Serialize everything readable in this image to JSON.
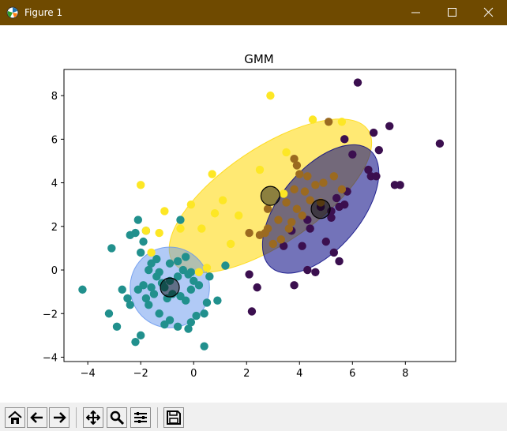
{
  "window": {
    "title": "Figure 1",
    "titlebar_color": "#6f4a00",
    "controls": [
      "minimize-icon",
      "maximize-icon",
      "close-icon"
    ]
  },
  "toolbar": {
    "buttons": [
      "home-icon",
      "back-arrow-icon",
      "forward-arrow-icon",
      "pan-icon",
      "zoom-icon",
      "configure-subplots-icon",
      "save-icon"
    ]
  },
  "chart_data": {
    "type": "scatter",
    "title": "GMM",
    "xlabel": "",
    "ylabel": "",
    "xlim": [
      -4.9,
      9.9
    ],
    "ylim": [
      -4.2,
      9.2
    ],
    "xticks": [
      -4,
      -2,
      0,
      2,
      4,
      6,
      8
    ],
    "yticks": [
      -4,
      -2,
      0,
      2,
      4,
      6,
      8
    ],
    "grid": false,
    "legend": "none",
    "series": [
      {
        "color": "#3b0f4f",
        "points": [
          [
            6.2,
            8.6
          ],
          [
            9.3,
            5.8
          ],
          [
            7.4,
            6.6
          ],
          [
            6.8,
            6.3
          ],
          [
            5.7,
            6.0
          ],
          [
            7.0,
            5.5
          ],
          [
            6.0,
            5.3
          ],
          [
            6.6,
            4.6
          ],
          [
            6.7,
            4.3
          ],
          [
            6.9,
            4.3
          ],
          [
            7.6,
            3.9
          ],
          [
            7.8,
            3.9
          ],
          [
            5.4,
            3.3
          ],
          [
            5.8,
            3.6
          ],
          [
            5.7,
            3.0
          ],
          [
            5.5,
            2.9
          ],
          [
            4.8,
            2.9
          ],
          [
            5.2,
            2.4
          ],
          [
            4.3,
            2.3
          ],
          [
            4.4,
            1.9
          ],
          [
            5.0,
            1.3
          ],
          [
            4.1,
            1.1
          ],
          [
            3.4,
            1.1
          ],
          [
            3.7,
            1.8
          ],
          [
            5.3,
            0.8
          ],
          [
            5.5,
            0.4
          ],
          [
            4.3,
            0.0
          ],
          [
            4.6,
            -0.1
          ],
          [
            3.8,
            -0.7
          ],
          [
            2.4,
            -0.8
          ],
          [
            2.1,
            -0.2
          ],
          [
            2.2,
            -1.9
          ],
          [
            5.2,
            2.7
          ]
        ],
        "symbol": "circle"
      },
      {
        "color": "#21908d",
        "points": [
          [
            -4.2,
            -0.9
          ],
          [
            -3.1,
            1.0
          ],
          [
            -3.2,
            -2.0
          ],
          [
            -2.9,
            -2.6
          ],
          [
            -2.7,
            -0.9
          ],
          [
            -2.5,
            -1.3
          ],
          [
            -2.4,
            -1.6
          ],
          [
            -2.4,
            1.6
          ],
          [
            -2.2,
            1.7
          ],
          [
            -2.1,
            2.3
          ],
          [
            -2.0,
            0.8
          ],
          [
            -1.8,
            1.8
          ],
          [
            -2.2,
            -3.3
          ],
          [
            -2.0,
            -3.0
          ],
          [
            -1.9,
            -0.7
          ],
          [
            -2.1,
            -0.9
          ],
          [
            -1.6,
            -0.8
          ],
          [
            -1.8,
            -1.3
          ],
          [
            -1.5,
            -1.1
          ],
          [
            -1.7,
            -1.6
          ],
          [
            -1.3,
            -2.0
          ],
          [
            -1.1,
            -2.5
          ],
          [
            -0.9,
            -2.3
          ],
          [
            -0.6,
            -2.6
          ],
          [
            -0.2,
            -2.7
          ],
          [
            -0.1,
            -2.4
          ],
          [
            0.1,
            -2.1
          ],
          [
            0.4,
            -2.0
          ],
          [
            0.5,
            -1.5
          ],
          [
            0.9,
            -1.4
          ],
          [
            0.4,
            -3.5
          ],
          [
            -0.3,
            -1.4
          ],
          [
            -0.5,
            -1.2
          ],
          [
            -0.8,
            -1.1
          ],
          [
            -1.0,
            -1.3
          ],
          [
            -1.2,
            -0.6
          ],
          [
            -1.4,
            -0.3
          ],
          [
            -1.1,
            -0.8
          ],
          [
            -0.9,
            -0.5
          ],
          [
            -0.6,
            -0.3
          ],
          [
            -0.4,
            0.0
          ],
          [
            -0.2,
            -0.2
          ],
          [
            0.0,
            -0.5
          ],
          [
            -0.1,
            -0.9
          ],
          [
            0.2,
            -0.7
          ],
          [
            -1.6,
            0.3
          ],
          [
            -1.4,
            0.5
          ],
          [
            -1.7,
            0.0
          ],
          [
            -1.3,
            -0.1
          ],
          [
            -0.9,
            0.3
          ],
          [
            -0.6,
            0.4
          ],
          [
            -0.3,
            0.6
          ],
          [
            0.6,
            -0.3
          ],
          [
            1.2,
            0.2
          ],
          [
            -0.5,
            2.3
          ],
          [
            -1.9,
            1.3
          ],
          [
            -0.1,
            -0.1
          ]
        ],
        "symbol": "circle"
      },
      {
        "color": "#fde725",
        "points": [
          [
            2.9,
            8.0
          ],
          [
            4.5,
            6.9
          ],
          [
            5.6,
            6.8
          ],
          [
            -2.0,
            3.9
          ],
          [
            -0.1,
            3.0
          ],
          [
            0.8,
            2.6
          ],
          [
            1.7,
            2.5
          ],
          [
            1.1,
            3.2
          ],
          [
            0.7,
            4.4
          ],
          [
            2.5,
            4.6
          ],
          [
            3.5,
            5.4
          ],
          [
            3.4,
            3.5
          ],
          [
            0.3,
            1.9
          ],
          [
            -0.5,
            1.9
          ],
          [
            -1.3,
            1.7
          ],
          [
            -1.1,
            2.7
          ],
          [
            -1.6,
            0.8
          ],
          [
            0.2,
            -0.1
          ],
          [
            0.5,
            0.1
          ],
          [
            -1.8,
            1.8
          ],
          [
            1.4,
            1.2
          ]
        ],
        "symbol": "circle"
      },
      {
        "color": "#9b6a20",
        "points": [
          [
            5.1,
            6.8
          ],
          [
            3.8,
            5.1
          ],
          [
            3.9,
            4.8
          ],
          [
            4.0,
            4.4
          ],
          [
            4.3,
            4.3
          ],
          [
            4.6,
            3.9
          ],
          [
            4.9,
            4.0
          ],
          [
            5.3,
            4.3
          ],
          [
            5.6,
            3.7
          ],
          [
            3.8,
            3.7
          ],
          [
            4.2,
            3.6
          ],
          [
            4.4,
            3.2
          ],
          [
            3.5,
            3.1
          ],
          [
            3.9,
            2.8
          ],
          [
            4.1,
            2.5
          ],
          [
            3.7,
            2.2
          ],
          [
            3.2,
            2.3
          ],
          [
            2.8,
            1.9
          ],
          [
            2.1,
            1.7
          ],
          [
            2.5,
            1.6
          ],
          [
            2.7,
            1.7
          ],
          [
            3.3,
            1.4
          ],
          [
            3.0,
            1.2
          ],
          [
            3.6,
            1.9
          ],
          [
            4.8,
            3.1
          ],
          [
            2.8,
            2.8
          ]
        ],
        "symbol": "circle"
      }
    ],
    "components": [
      {
        "color": "#ffd700",
        "mean": [
          2.9,
          3.4
        ],
        "width": 8.9,
        "height": 4.4,
        "angle_deg": 34,
        "alpha": 0.55
      },
      {
        "color": "#000080",
        "mean": [
          4.8,
          2.8
        ],
        "width": 5.8,
        "height": 3.7,
        "angle_deg": 50,
        "alpha": 0.55
      },
      {
        "color": "#6495ed",
        "mean": [
          -0.9,
          -0.8
        ],
        "width": 3.0,
        "height": 3.7,
        "angle_deg": 0,
        "alpha": 0.5
      }
    ]
  }
}
